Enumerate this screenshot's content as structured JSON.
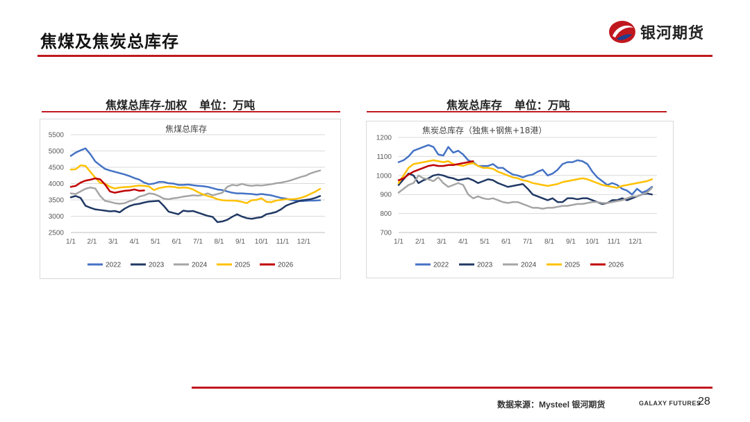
{
  "page": {
    "title": "焦煤及焦炭总库存",
    "logo_text": "银河期货",
    "source": "数据来源：Mysteel 银河期货",
    "brand": "GALAXY FUTURES",
    "page_number": "28",
    "accent_color": "#c0181f"
  },
  "panels": {
    "left_title": "焦煤总库存-加权    单位：万吨",
    "right_title": "焦炭总库存    单位：万吨"
  },
  "chart_data": [
    {
      "type": "line",
      "title": "焦煤总库存",
      "xlabel": "",
      "ylabel": "",
      "ylim": [
        2500,
        5500
      ],
      "yticks": [
        2500,
        3000,
        3500,
        4000,
        4500,
        5000,
        5500
      ],
      "xticks": [
        "1/1",
        "2/1",
        "3/1",
        "4/1",
        "5/1",
        "6/1",
        "7/1",
        "8/1",
        "9/1",
        "10/1",
        "11/1",
        "12/1"
      ],
      "x_unit": "week",
      "xlim": [
        0,
        52
      ],
      "series": [
        {
          "name": "2022",
          "color": "#4472c4",
          "x": [
            1,
            2,
            3,
            4,
            5,
            6,
            7,
            8,
            9,
            10,
            11,
            12,
            13,
            14,
            15,
            16,
            17,
            18,
            19,
            20,
            21,
            22,
            23,
            24,
            25,
            26,
            27,
            28,
            29,
            30,
            31,
            32,
            33,
            34,
            35,
            36,
            37,
            38,
            39,
            40,
            41,
            42,
            43,
            44,
            45,
            46,
            47,
            48,
            49,
            50,
            51,
            52
          ],
          "values": [
            4850,
            4950,
            5020,
            5080,
            4900,
            4680,
            4560,
            4450,
            4400,
            4360,
            4320,
            4280,
            4230,
            4170,
            4120,
            4030,
            3980,
            4000,
            4050,
            4050,
            4010,
            4000,
            3960,
            3960,
            3970,
            3950,
            3930,
            3920,
            3900,
            3860,
            3820,
            3800,
            3760,
            3720,
            3700,
            3700,
            3690,
            3680,
            3660,
            3680,
            3660,
            3640,
            3600,
            3560,
            3540,
            3500,
            3480,
            3460,
            3470,
            3480,
            3480,
            3490
          ]
        },
        {
          "name": "2023",
          "color": "#203864",
          "x": [
            1,
            2,
            3,
            4,
            5,
            6,
            7,
            8,
            9,
            10,
            11,
            12,
            13,
            14,
            15,
            16,
            17,
            18,
            19,
            20,
            21,
            22,
            23,
            24,
            25,
            26,
            27,
            28,
            29,
            30,
            31,
            32,
            33,
            34,
            35,
            36,
            37,
            38,
            39,
            40,
            41,
            42,
            43,
            44,
            45,
            46,
            47,
            48,
            49,
            50,
            51,
            52
          ],
          "values": [
            3580,
            3620,
            3560,
            3320,
            3260,
            3210,
            3190,
            3170,
            3150,
            3160,
            3120,
            3230,
            3310,
            3360,
            3380,
            3420,
            3450,
            3460,
            3470,
            3320,
            3140,
            3100,
            3060,
            3170,
            3150,
            3160,
            3110,
            3060,
            3010,
            2980,
            2820,
            2840,
            2890,
            2980,
            3060,
            2990,
            2940,
            2920,
            2950,
            2970,
            3060,
            3090,
            3130,
            3210,
            3320,
            3380,
            3430,
            3480,
            3500,
            3520,
            3560,
            3620
          ]
        },
        {
          "name": "2024",
          "color": "#a5a5a5",
          "x": [
            1,
            2,
            3,
            4,
            5,
            6,
            7,
            8,
            9,
            10,
            11,
            12,
            13,
            14,
            15,
            16,
            17,
            18,
            19,
            20,
            21,
            22,
            23,
            24,
            25,
            26,
            27,
            28,
            29,
            30,
            31,
            32,
            33,
            34,
            35,
            36,
            37,
            38,
            39,
            40,
            41,
            42,
            43,
            44,
            45,
            46,
            47,
            48,
            49,
            50,
            51,
            52
          ],
          "values": [
            3700,
            3680,
            3760,
            3840,
            3880,
            3850,
            3620,
            3470,
            3440,
            3400,
            3380,
            3400,
            3460,
            3510,
            3600,
            3640,
            3700,
            3680,
            3620,
            3540,
            3520,
            3550,
            3570,
            3600,
            3620,
            3640,
            3630,
            3650,
            3700,
            3640,
            3680,
            3720,
            3900,
            3960,
            3940,
            3990,
            3950,
            3930,
            3950,
            3940,
            3960,
            3980,
            4010,
            4030,
            4060,
            4100,
            4150,
            4200,
            4240,
            4310,
            4360,
            4400
          ]
        },
        {
          "name": "2025",
          "color": "#ffc000",
          "x": [
            1,
            2,
            3,
            4,
            5,
            6,
            7,
            8,
            9,
            10,
            11,
            12,
            13,
            14,
            15,
            16,
            17,
            18,
            19,
            20,
            21,
            22,
            23,
            24,
            25,
            26,
            27,
            28,
            29,
            30,
            31,
            32,
            33,
            34,
            35,
            36,
            37,
            38,
            39,
            40,
            41,
            42,
            43,
            44,
            45,
            46,
            47,
            48,
            49,
            50,
            51,
            52
          ],
          "values": [
            4430,
            4440,
            4560,
            4540,
            4360,
            4180,
            4020,
            4000,
            3900,
            3850,
            3880,
            3890,
            3900,
            3920,
            3940,
            3930,
            3910,
            3800,
            3860,
            3890,
            3910,
            3900,
            3870,
            3880,
            3870,
            3820,
            3740,
            3670,
            3620,
            3580,
            3520,
            3490,
            3480,
            3480,
            3470,
            3440,
            3400,
            3490,
            3500,
            3550,
            3440,
            3430,
            3480,
            3500,
            3520,
            3520,
            3530,
            3560,
            3610,
            3680,
            3750,
            3840
          ]
        },
        {
          "name": "2026",
          "color": "#c00000",
          "x": [
            1,
            2,
            3,
            4,
            5,
            6,
            7,
            8,
            9,
            10,
            11,
            12,
            13,
            14,
            15,
            16
          ],
          "values": [
            3900,
            3930,
            4030,
            4090,
            4120,
            4160,
            4130,
            3970,
            3760,
            3720,
            3750,
            3780,
            3790,
            3820,
            3780,
            3790
          ]
        }
      ]
    },
    {
      "type": "line",
      "title": "焦炭总库存（独焦+钢焦+18港）",
      "xlabel": "",
      "ylabel": "",
      "ylim": [
        700,
        1200
      ],
      "yticks": [
        700,
        800,
        900,
        1000,
        1100,
        1200
      ],
      "xticks": [
        "1/1",
        "2/1",
        "3/1",
        "4/1",
        "5/1",
        "6/1",
        "7/1",
        "8/1",
        "9/1",
        "10/1",
        "11/1",
        "12/1"
      ],
      "x_unit": "week",
      "xlim": [
        0,
        52
      ],
      "series": [
        {
          "name": "2022",
          "color": "#4472c4",
          "x": [
            1,
            2,
            3,
            4,
            5,
            6,
            7,
            8,
            9,
            10,
            11,
            12,
            13,
            14,
            15,
            16,
            17,
            18,
            19,
            20,
            21,
            22,
            23,
            24,
            25,
            26,
            27,
            28,
            29,
            30,
            31,
            32,
            33,
            34,
            35,
            36,
            37,
            38,
            39,
            40,
            41,
            42,
            43,
            44,
            45,
            46,
            47,
            48,
            49,
            50,
            51,
            52
          ],
          "values": [
            1070,
            1080,
            1100,
            1130,
            1140,
            1150,
            1160,
            1150,
            1110,
            1105,
            1150,
            1120,
            1130,
            1110,
            1080,
            1070,
            1050,
            1050,
            1050,
            1060,
            1040,
            1040,
            1020,
            1005,
            1000,
            990,
            1000,
            1005,
            1020,
            1030,
            1000,
            1010,
            1030,
            1060,
            1070,
            1070,
            1080,
            1075,
            1060,
            1020,
            990,
            970,
            950,
            960,
            950,
            930,
            920,
            900,
            930,
            910,
            920,
            940
          ]
        },
        {
          "name": "2023",
          "color": "#203864",
          "x": [
            1,
            2,
            3,
            4,
            5,
            6,
            7,
            8,
            9,
            10,
            11,
            12,
            13,
            14,
            15,
            16,
            17,
            18,
            19,
            20,
            21,
            22,
            23,
            24,
            25,
            26,
            27,
            28,
            29,
            30,
            31,
            32,
            33,
            34,
            35,
            36,
            37,
            38,
            39,
            40,
            41,
            42,
            43,
            44,
            45,
            46,
            47,
            48,
            49,
            50,
            51,
            52
          ],
          "values": [
            950,
            980,
            1010,
            1000,
            960,
            975,
            985,
            1000,
            1005,
            1000,
            990,
            985,
            975,
            980,
            985,
            975,
            960,
            970,
            980,
            975,
            960,
            950,
            940,
            945,
            950,
            955,
            930,
            900,
            890,
            880,
            870,
            880,
            860,
            860,
            880,
            880,
            875,
            880,
            880,
            870,
            860,
            850,
            855,
            870,
            870,
            880,
            870,
            880,
            890,
            900,
            905,
            900
          ]
        },
        {
          "name": "2024",
          "color": "#a5a5a5",
          "x": [
            1,
            2,
            3,
            4,
            5,
            6,
            7,
            8,
            9,
            10,
            11,
            12,
            13,
            14,
            15,
            16,
            17,
            18,
            19,
            20,
            21,
            22,
            23,
            24,
            25,
            26,
            27,
            28,
            29,
            30,
            31,
            32,
            33,
            34,
            35,
            36,
            37,
            38,
            39,
            40,
            41,
            42,
            43,
            44,
            45,
            46,
            47,
            48,
            49,
            50,
            51,
            52
          ],
          "values": [
            910,
            930,
            950,
            960,
            1000,
            985,
            980,
            970,
            990,
            960,
            940,
            950,
            960,
            950,
            900,
            880,
            890,
            880,
            875,
            880,
            870,
            860,
            855,
            860,
            860,
            850,
            840,
            830,
            830,
            825,
            830,
            830,
            835,
            840,
            840,
            845,
            850,
            850,
            855,
            860,
            860,
            855,
            855,
            860,
            865,
            870,
            880,
            890,
            890,
            900,
            910,
            935
          ]
        },
        {
          "name": "2025",
          "color": "#ffc000",
          "x": [
            1,
            2,
            3,
            4,
            5,
            6,
            7,
            8,
            9,
            10,
            11,
            12,
            13,
            14,
            15,
            16,
            17,
            18,
            19,
            20,
            21,
            22,
            23,
            24,
            25,
            26,
            27,
            28,
            29,
            30,
            31,
            32,
            33,
            34,
            35,
            36,
            37,
            38,
            39,
            40,
            41,
            42,
            43,
            44,
            45,
            46,
            47,
            48,
            49,
            50,
            51,
            52
          ],
          "values": [
            960,
            1000,
            1040,
            1060,
            1065,
            1070,
            1075,
            1080,
            1075,
            1070,
            1075,
            1060,
            1055,
            1050,
            1060,
            1065,
            1050,
            1040,
            1040,
            1035,
            1020,
            1010,
            1000,
            990,
            985,
            975,
            970,
            960,
            955,
            950,
            945,
            950,
            955,
            965,
            970,
            975,
            980,
            985,
            980,
            970,
            960,
            950,
            945,
            940,
            935,
            945,
            950,
            955,
            960,
            965,
            970,
            980
          ]
        },
        {
          "name": "2026",
          "color": "#c00000",
          "x": [
            1,
            2,
            3,
            4,
            5,
            6,
            7,
            8,
            9,
            10,
            11,
            12,
            13,
            14,
            15,
            16
          ],
          "values": [
            975,
            985,
            1005,
            1020,
            1030,
            1040,
            1050,
            1055,
            1050,
            1050,
            1055,
            1055,
            1060,
            1065,
            1070,
            1075
          ]
        }
      ]
    }
  ]
}
